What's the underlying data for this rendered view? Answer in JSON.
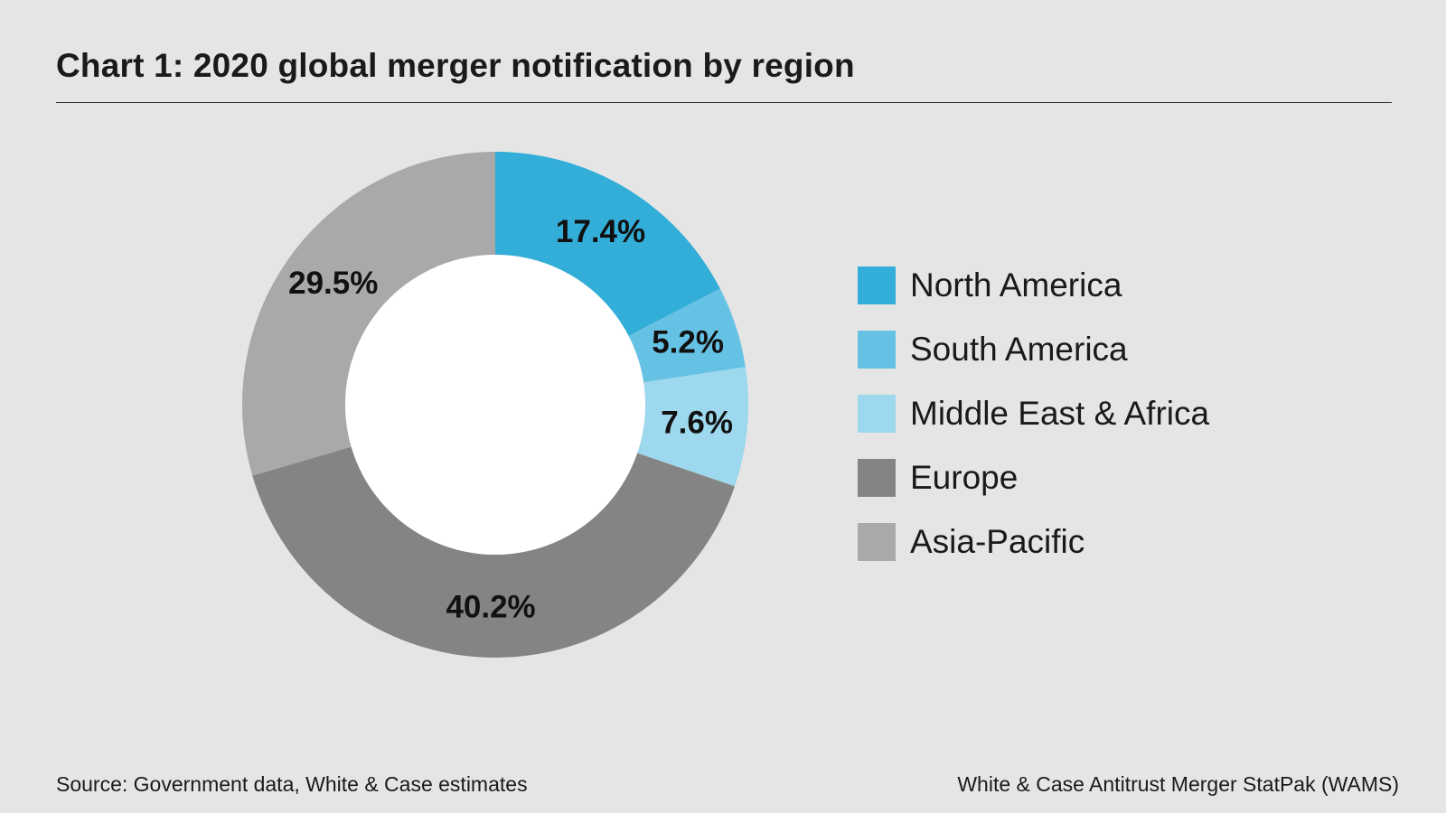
{
  "title": "Chart 1: 2020 global merger notification by region",
  "chart_data": {
    "type": "pie",
    "variant": "donut",
    "title": "Chart 1: 2020 global merger notification by region",
    "unit": "%",
    "series": [
      {
        "name": "North America",
        "value": 17.4,
        "label": "17.4%",
        "color": "#33aed8"
      },
      {
        "name": "South America",
        "value": 5.2,
        "label": "5.2%",
        "color": "#66c2e4"
      },
      {
        "name": "Middle East & Africa",
        "value": 7.6,
        "label": "7.6%",
        "color": "#9dd8ee"
      },
      {
        "name": "Europe",
        "value": 40.2,
        "label": "40.2%",
        "color": "#848484"
      },
      {
        "name": "Asia-Pacific",
        "value": 29.5,
        "label": "29.5%",
        "color": "#a9a9a9"
      }
    ],
    "legend": "right"
  },
  "footer": {
    "source": "Source: Government data, White & Case estimates",
    "credit": "White & Case Antitrust Merger StatPak (WAMS)"
  }
}
